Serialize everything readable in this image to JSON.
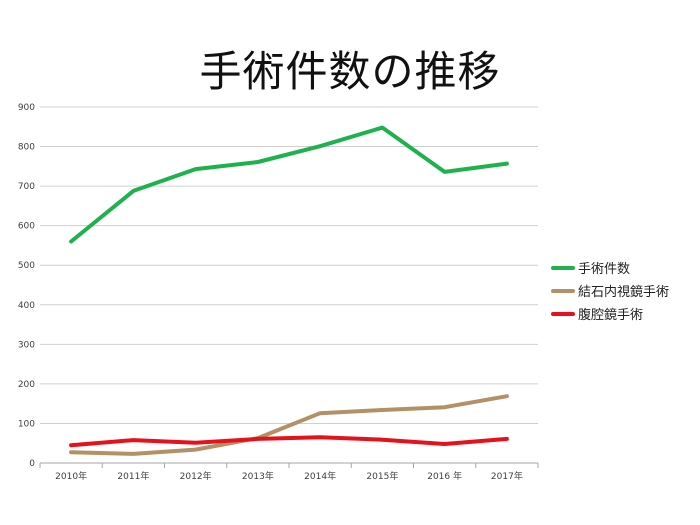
{
  "chart_data": {
    "type": "line",
    "title": "手術件数の推移",
    "xlabel": "",
    "ylabel": "",
    "categories": [
      "2010年",
      "2011年",
      "2012年",
      "2013年",
      "2014年",
      "2015年",
      "2016 年",
      "2017年"
    ],
    "ylim": [
      0,
      900
    ],
    "yticks": [
      "0",
      "100",
      "200",
      "300",
      "400",
      "500",
      "600",
      "700",
      "800",
      "900"
    ],
    "grid": true,
    "legend": "right",
    "series": [
      {
        "name": "手術件数",
        "color": "#1fb14e",
        "values": [
          560,
          688,
          743,
          761,
          801,
          848,
          736,
          757
        ]
      },
      {
        "name": "結石内視鏡手術",
        "color": "#b39065",
        "values": [
          27,
          23,
          34,
          63,
          126,
          134,
          141,
          169
        ]
      },
      {
        "name": "腹腔鏡手術",
        "color": "#e8111b",
        "values": [
          45,
          58,
          51,
          61,
          65,
          59,
          48,
          61
        ]
      }
    ]
  }
}
